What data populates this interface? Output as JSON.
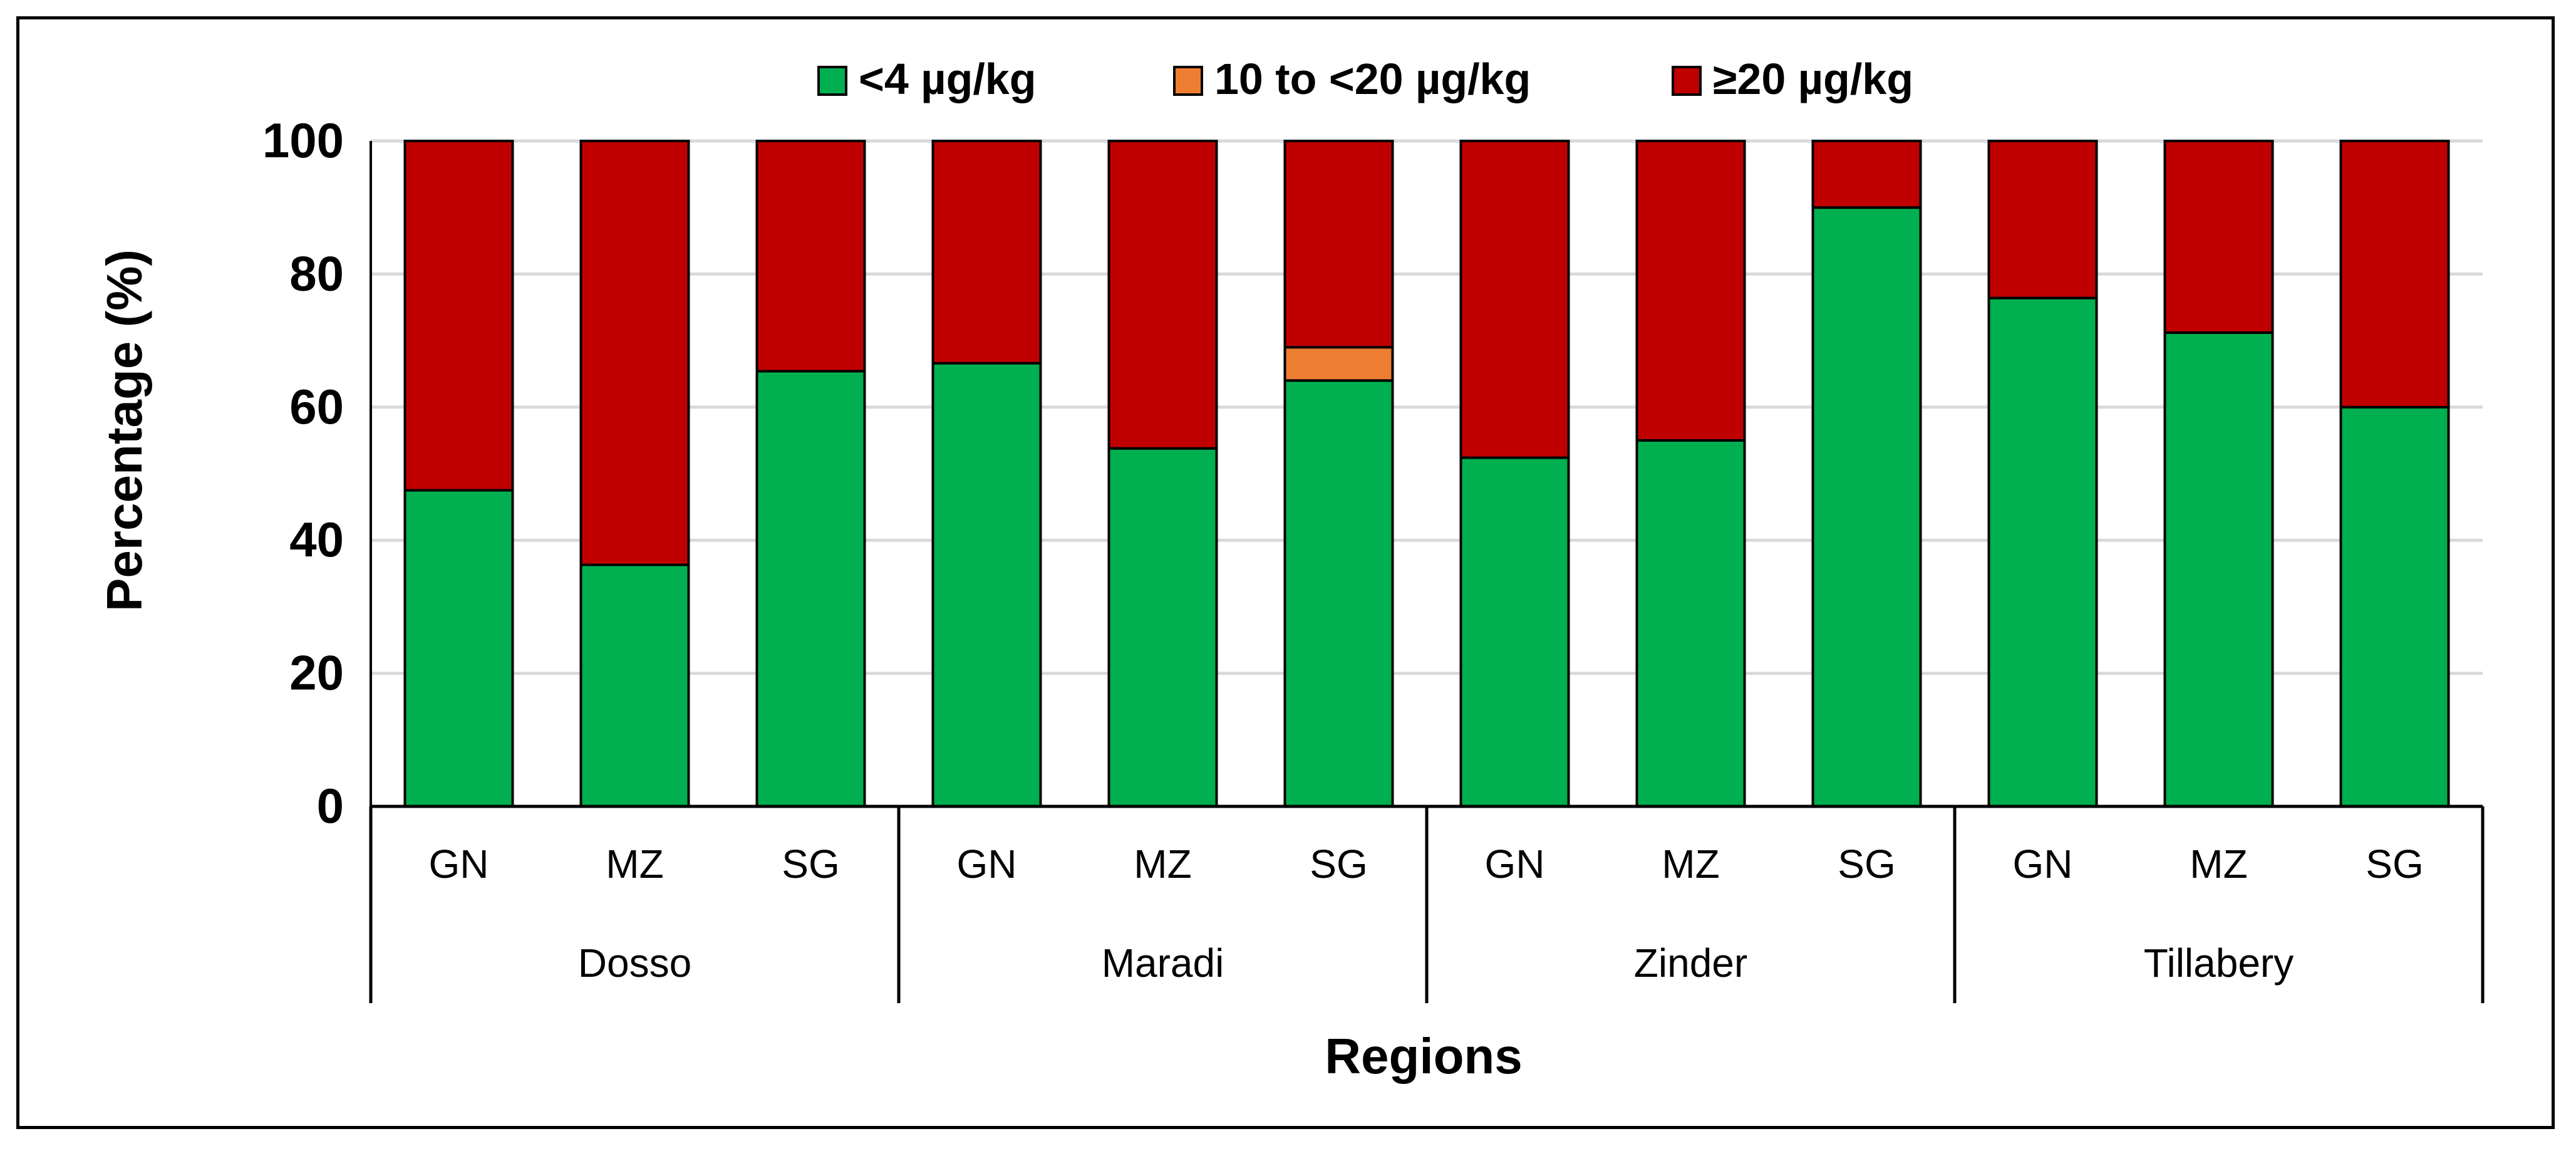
{
  "chart_data": {
    "type": "bar",
    "stacked": true,
    "title": "",
    "xlabel": "Regions",
    "ylabel": "Percentage (%)",
    "ylim": [
      0,
      100
    ],
    "yticks": [
      "0",
      "20",
      "40",
      "60",
      "80",
      "100"
    ],
    "grid": true,
    "legend_position": "top",
    "groups": [
      {
        "name": "Dosso",
        "categories": [
          "GN",
          "MZ",
          "SG"
        ]
      },
      {
        "name": "Maradi",
        "categories": [
          "GN",
          "MZ",
          "SG"
        ]
      },
      {
        "name": "Zinder",
        "categories": [
          "GN",
          "MZ",
          "SG"
        ]
      },
      {
        "name": "Tillabery",
        "categories": [
          "GN",
          "MZ",
          "SG"
        ]
      }
    ],
    "series": [
      {
        "name": "<4 µg/kg",
        "color": "#00B050",
        "values": [
          47.5,
          36.3,
          65.4,
          66.6,
          53.8,
          64.0,
          52.4,
          55.0,
          90.0,
          76.4,
          71.2,
          60.0
        ]
      },
      {
        "name": "10 to <20 µg/kg",
        "color": "#ED7D31",
        "values": [
          0,
          0,
          0,
          0,
          0,
          5.0,
          0,
          0,
          0,
          0,
          0,
          0
        ]
      },
      {
        "name": "≥20 µg/kg",
        "color": "#C00000",
        "values": [
          52.5,
          63.7,
          34.6,
          33.4,
          46.2,
          31.0,
          47.6,
          45.0,
          10.0,
          23.6,
          28.8,
          40.0
        ]
      }
    ]
  }
}
